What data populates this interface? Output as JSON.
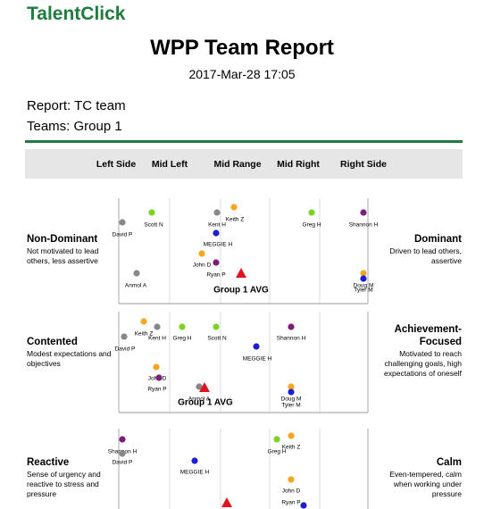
{
  "logo": "TalentClick",
  "header": {
    "title": "WPP Team Report",
    "datetime": "2017-Mar-28 17:05"
  },
  "report": {
    "report_line": "Report: TC team",
    "teams_line": "Teams: Group 1"
  },
  "columns": [
    "Left Side",
    "Mid Left",
    "Mid Range",
    "Mid Right",
    "Right Side"
  ],
  "sections": [
    {
      "left_title": "Non-Dominant",
      "left_desc": "Not motivated to lead others, less assertive",
      "right_title": "Dominant",
      "right_desc": "Driven to lead others, assertive",
      "avg_label": "Group 1 AVG",
      "points": [
        {
          "label": "David P",
          "color": "#888888"
        },
        {
          "label": "Scott N",
          "color": "#7ed321"
        },
        {
          "label": "Kent H",
          "color": "#888888"
        },
        {
          "label": "Keith Z",
          "color": "#f5a623"
        },
        {
          "label": "MEGGIE H",
          "color": "#1f1fd0"
        },
        {
          "label": "John D",
          "color": "#f5a623"
        },
        {
          "label": "Ryan P",
          "color": "#7b1f7b"
        },
        {
          "label": "Anmol A",
          "color": "#888888"
        },
        {
          "label": "Greg H",
          "color": "#7ed321"
        },
        {
          "label": "Shannon H",
          "color": "#7b1f7b"
        },
        {
          "label": "Doug M",
          "color": "#f5a623"
        },
        {
          "label": "Tyler M",
          "color": "#1f1fd0"
        }
      ]
    },
    {
      "left_title": "Contented",
      "left_desc": "Modest expectations and objectives",
      "right_title": "Achievement-Focused",
      "right_desc": "Motivated to reach challenging goals, high expectations of oneself",
      "avg_label": "Group 1 AVG",
      "points": [
        {
          "label": "Keith Z",
          "color": "#f5a623"
        },
        {
          "label": "Kent H",
          "color": "#888888"
        },
        {
          "label": "David P",
          "color": "#888888"
        },
        {
          "label": "Greg H",
          "color": "#7ed321"
        },
        {
          "label": "Scott N",
          "color": "#7ed321"
        },
        {
          "label": "Shannon H",
          "color": "#7b1f7b"
        },
        {
          "label": "MEGGIE H",
          "color": "#1f1fd0"
        },
        {
          "label": "John D",
          "color": "#f5a623"
        },
        {
          "label": "Ryan P",
          "color": "#7b1f7b"
        },
        {
          "label": "Anmol A",
          "color": "#888888"
        },
        {
          "label": "Doug M",
          "color": "#f5a623"
        },
        {
          "label": "Tyler M",
          "color": "#1f1fd0"
        }
      ]
    },
    {
      "left_title": "Reactive",
      "left_desc": "Sense of urgency and reactive to stress and pressure",
      "right_title": "Calm",
      "right_desc": "Even-tempered, calm when working under pressure",
      "points": [
        {
          "label": "Shannon H",
          "color": "#7b1f7b"
        },
        {
          "label": "David P",
          "color": "#888888"
        },
        {
          "label": "MEGGIE H",
          "color": "#1f1fd0"
        },
        {
          "label": "Greg H",
          "color": "#7ed321"
        },
        {
          "label": "Keith Z",
          "color": "#f5a623"
        },
        {
          "label": "John D",
          "color": "#f5a623"
        },
        {
          "label": "Ryan P",
          "color": "#1f1fd0"
        }
      ]
    }
  ]
}
